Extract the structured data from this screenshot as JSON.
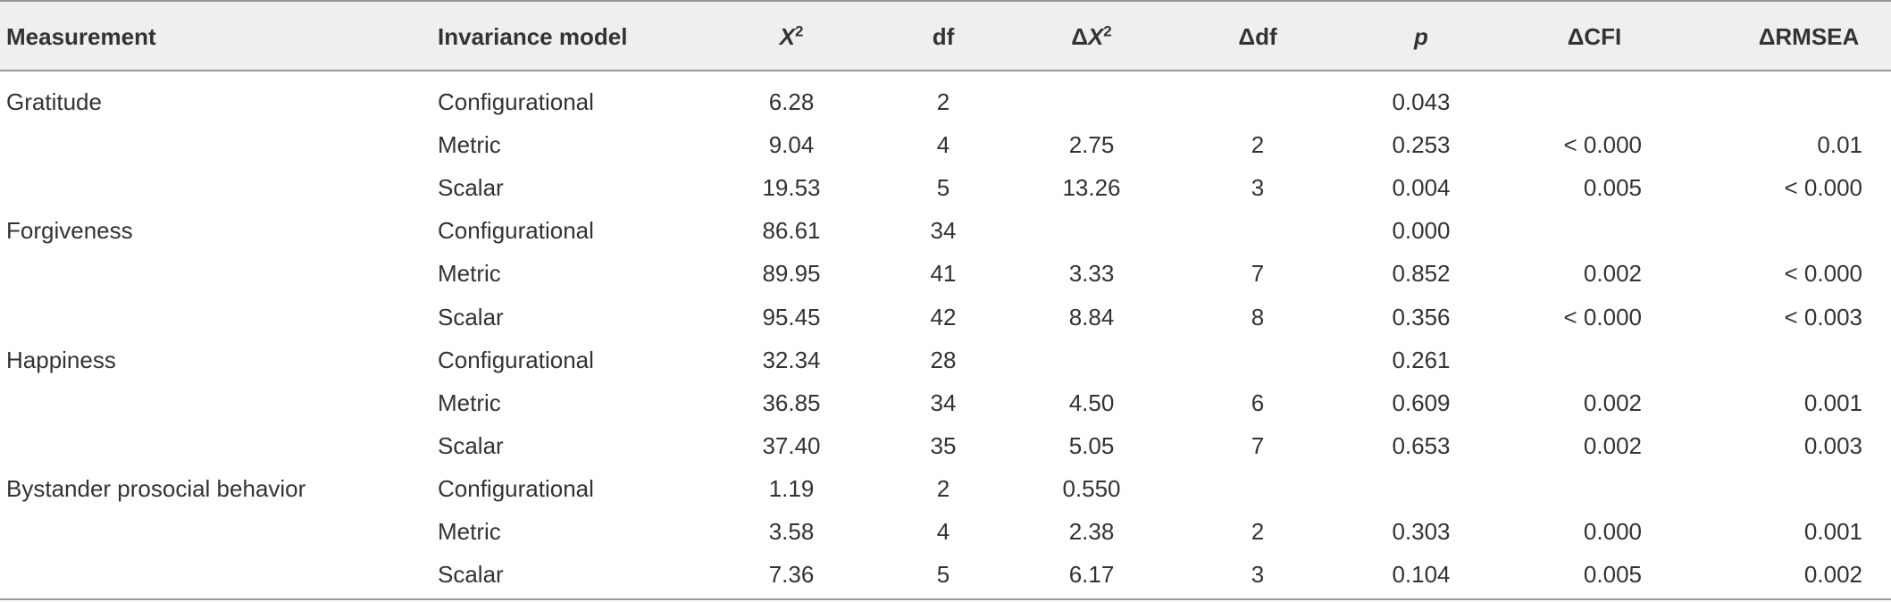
{
  "table": {
    "headers": [
      "Measurement",
      "Invariance model",
      {
        "base": "X",
        "sup": "2"
      },
      "df",
      {
        "prefix": "Δ",
        "base": "X",
        "sup": "2"
      },
      "Δdf",
      "p",
      "ΔCFI",
      "ΔRMSEA"
    ],
    "rows": [
      [
        "Gratitude",
        "Configurational",
        "6.28",
        "2",
        null,
        null,
        "0.043",
        null,
        null
      ],
      [
        null,
        "Metric",
        "9.04",
        "4",
        "2.75",
        "2",
        "0.253",
        "< 0.000",
        "0.01"
      ],
      [
        null,
        "Scalar",
        "19.53",
        "5",
        "13.26",
        "3",
        "0.004",
        "0.005",
        "< 0.000"
      ],
      [
        "Forgiveness",
        "Configurational",
        "86.61",
        "34",
        null,
        null,
        "0.000",
        null,
        null
      ],
      [
        null,
        "Metric",
        "89.95",
        "41",
        "3.33",
        "7",
        "0.852",
        "0.002",
        "< 0.000"
      ],
      [
        null,
        "Scalar",
        "95.45",
        "42",
        "8.84",
        "8",
        "0.356",
        "< 0.000",
        "< 0.003"
      ],
      [
        "Happiness",
        "Configurational",
        "32.34",
        "28",
        null,
        null,
        "0.261",
        null,
        null
      ],
      [
        null,
        "Metric",
        "36.85",
        "34",
        "4.50",
        "6",
        "0.609",
        "0.002",
        "0.001"
      ],
      [
        null,
        "Scalar",
        "37.40",
        "35",
        "5.05",
        "7",
        "0.653",
        "0.002",
        "0.003"
      ],
      [
        "Bystander prosocial behavior",
        "Configurational",
        "1.19",
        "2",
        "0.550",
        null,
        null,
        null,
        null
      ],
      [
        null,
        "Metric",
        "3.58",
        "4",
        "2.38",
        "2",
        "0.303",
        "0.000",
        "0.001"
      ],
      [
        null,
        "Scalar",
        "7.36",
        "5",
        "6.17",
        "3",
        "0.104",
        "0.005",
        "0.002"
      ]
    ]
  }
}
